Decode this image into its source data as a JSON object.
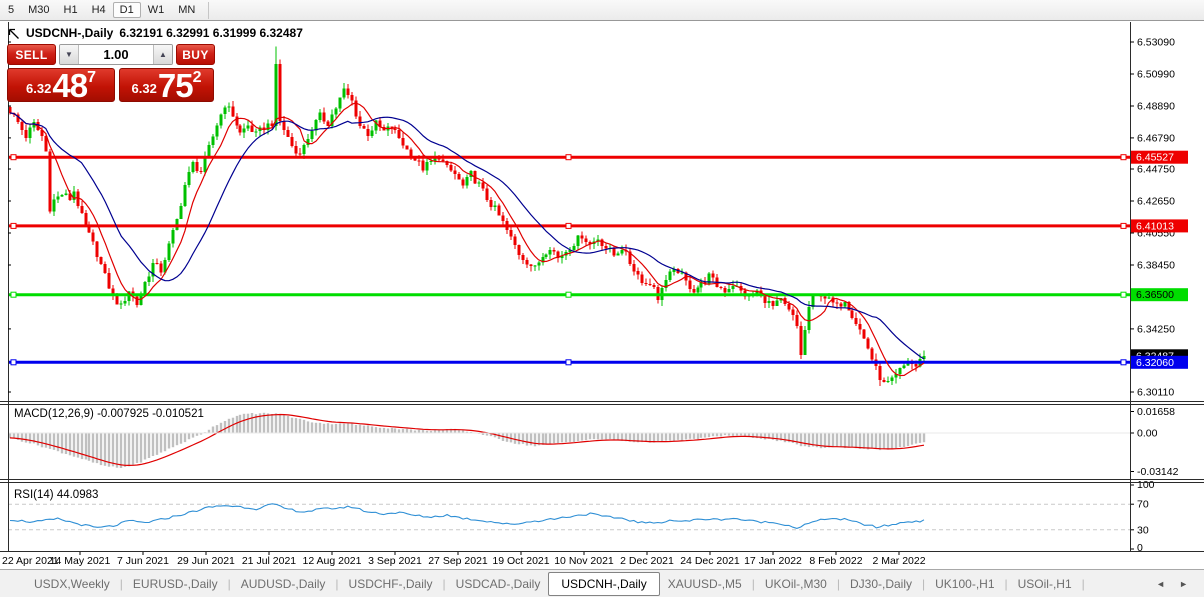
{
  "toolbar": {
    "items": [
      "5",
      "M30",
      "H1",
      "H4",
      "D1",
      "W1",
      "MN"
    ],
    "active": "D1"
  },
  "chart_header": {
    "symbol": "USDCNH-,Daily",
    "ohlc": "6.32191 6.32991 6.31999 6.32487"
  },
  "trade_panel": {
    "sell_label": "SELL",
    "buy_label": "BUY",
    "volume": "1.00",
    "sell_price_prefix": "6.32",
    "sell_price_big": "48",
    "sell_price_sup": "7",
    "buy_price_prefix": "6.32",
    "buy_price_big": "75",
    "buy_price_sup": "2"
  },
  "icons": {
    "volume_down": "▼",
    "volume_up": "▲",
    "tab_scroll_left": "◄",
    "tab_scroll_right": "►"
  },
  "tabs": {
    "items": [
      "USDX,Weekly",
      "EURUSD-,Daily",
      "AUDUSD-,Daily",
      "USDCHF-,Daily",
      "USDCAD-,Daily",
      "USDCNH-,Daily",
      "XAUUSD-,M5",
      "UKOil-,M30",
      "DJ30-,Daily",
      "UK100-,H1",
      "USOil-,H1"
    ],
    "active_index": 5
  },
  "chart_data": {
    "type": "candlestick",
    "title": "USDCNH-,Daily",
    "x_axis_dates": [
      "22 Apr 2021",
      "14 May 2021",
      "7 Jun 2021",
      "29 Jun 2021",
      "21 Jul 2021",
      "12 Aug 2021",
      "3 Sep 2021",
      "27 Sep 2021",
      "19 Oct 2021",
      "10 Nov 2021",
      "2 Dec 2021",
      "24 Dec 2021",
      "17 Jan 2022",
      "8 Feb 2022",
      "2 Mar 2022"
    ],
    "y_axis_ticks": [
      "6.53090",
      "6.50990",
      "6.48890",
      "6.46790",
      "6.44750",
      "6.42650",
      "6.40550",
      "6.38450",
      "6.34250",
      "6.30110"
    ],
    "y_range": [
      6.295,
      6.541
    ],
    "levels": [
      {
        "price": 6.45527,
        "label": "6.45527",
        "color": "#ee0000",
        "text_color": "#ffffff"
      },
      {
        "price": 6.41013,
        "label": "6.41013",
        "color": "#ee0000",
        "text_color": "#ffffff"
      },
      {
        "price": 6.365,
        "label": "6.36500",
        "color": "#00dd00",
        "text_color": "#000000"
      },
      {
        "price": 6.3206,
        "label": "6.32060",
        "color": "#0000ee",
        "text_color": "#ffffff"
      }
    ],
    "current_close_badge": {
      "price": 6.32487,
      "label": "6.32487",
      "color": "#000000",
      "text_color": "#ffffff"
    },
    "candle_count": 231,
    "spike_index": 67,
    "spike_high": 6.528,
    "price_anchors": [
      [
        0,
        6.486
      ],
      [
        2,
        6.478
      ],
      [
        4,
        6.469
      ],
      [
        6,
        6.477
      ],
      [
        8,
        6.469
      ],
      [
        9,
        6.459
      ],
      [
        10,
        6.422
      ],
      [
        11,
        6.427
      ],
      [
        13,
        6.431
      ],
      [
        15,
        6.428
      ],
      [
        16,
        6.433
      ],
      [
        18,
        6.416
      ],
      [
        20,
        6.404
      ],
      [
        22,
        6.392
      ],
      [
        24,
        6.377
      ],
      [
        26,
        6.364
      ],
      [
        28,
        6.357
      ],
      [
        30,
        6.368
      ],
      [
        32,
        6.359
      ],
      [
        34,
        6.373
      ],
      [
        36,
        6.385
      ],
      [
        38,
        6.381
      ],
      [
        40,
        6.397
      ],
      [
        42,
        6.414
      ],
      [
        44,
        6.437
      ],
      [
        46,
        6.451
      ],
      [
        48,
        6.446
      ],
      [
        50,
        6.461
      ],
      [
        52,
        6.477
      ],
      [
        54,
        6.49
      ],
      [
        56,
        6.483
      ],
      [
        58,
        6.471
      ],
      [
        60,
        6.476
      ],
      [
        62,
        6.47
      ],
      [
        64,
        6.475
      ],
      [
        66,
        6.478
      ],
      [
        67,
        6.514
      ],
      [
        68,
        6.479
      ],
      [
        70,
        6.468
      ],
      [
        72,
        6.458
      ],
      [
        74,
        6.462
      ],
      [
        76,
        6.474
      ],
      [
        78,
        6.482
      ],
      [
        80,
        6.478
      ],
      [
        82,
        6.488
      ],
      [
        84,
        6.499
      ],
      [
        86,
        6.492
      ],
      [
        88,
        6.476
      ],
      [
        90,
        6.471
      ],
      [
        92,
        6.477
      ],
      [
        94,
        6.472
      ],
      [
        96,
        6.475
      ],
      [
        98,
        6.468
      ],
      [
        100,
        6.46
      ],
      [
        102,
        6.454
      ],
      [
        104,
        6.448
      ],
      [
        106,
        6.452
      ],
      [
        108,
        6.456
      ],
      [
        110,
        6.448
      ],
      [
        112,
        6.444
      ],
      [
        114,
        6.436
      ],
      [
        116,
        6.444
      ],
      [
        118,
        6.437
      ],
      [
        120,
        6.428
      ],
      [
        122,
        6.421
      ],
      [
        124,
        6.412
      ],
      [
        126,
        6.402
      ],
      [
        128,
        6.392
      ],
      [
        130,
        6.387
      ],
      [
        132,
        6.382
      ],
      [
        134,
        6.391
      ],
      [
        136,
        6.397
      ],
      [
        138,
        6.389
      ],
      [
        140,
        6.394
      ],
      [
        142,
        6.399
      ],
      [
        144,
        6.404
      ],
      [
        146,
        6.398
      ],
      [
        148,
        6.402
      ],
      [
        150,
        6.396
      ],
      [
        152,
        6.391
      ],
      [
        154,
        6.396
      ],
      [
        156,
        6.386
      ],
      [
        158,
        6.378
      ],
      [
        160,
        6.372
      ],
      [
        162,
        6.372
      ],
      [
        163,
        6.36
      ],
      [
        164,
        6.371
      ],
      [
        166,
        6.378
      ],
      [
        168,
        6.381
      ],
      [
        170,
        6.373
      ],
      [
        172,
        6.368
      ],
      [
        174,
        6.372
      ],
      [
        176,
        6.377
      ],
      [
        178,
        6.371
      ],
      [
        180,
        6.368
      ],
      [
        182,
        6.372
      ],
      [
        184,
        6.367
      ],
      [
        186,
        6.363
      ],
      [
        188,
        6.367
      ],
      [
        190,
        6.362
      ],
      [
        192,
        6.357
      ],
      [
        194,
        6.361
      ],
      [
        196,
        6.354
      ],
      [
        197,
        6.35
      ],
      [
        198,
        6.344
      ],
      [
        199,
        6.326
      ],
      [
        200,
        6.341
      ],
      [
        201,
        6.357
      ],
      [
        202,
        6.362
      ],
      [
        204,
        6.366
      ],
      [
        206,
        6.361
      ],
      [
        208,
        6.357
      ],
      [
        210,
        6.362
      ],
      [
        212,
        6.352
      ],
      [
        214,
        6.342
      ],
      [
        216,
        6.33
      ],
      [
        218,
        6.316
      ],
      [
        220,
        6.306
      ],
      [
        222,
        6.308
      ],
      [
        224,
        6.315
      ],
      [
        226,
        6.321
      ],
      [
        228,
        6.318
      ],
      [
        230,
        6.32487
      ]
    ],
    "macd": {
      "label": "MACD(12,26,9) -0.007925 -0.010521",
      "axis_ticks": [
        "0.01658",
        "0.00",
        "-0.03142"
      ],
      "values_end": [
        -0.007925,
        -0.010521
      ],
      "anchors": [
        [
          0,
          -0.004
        ],
        [
          6,
          -0.009
        ],
        [
          12,
          -0.015
        ],
        [
          18,
          -0.021
        ],
        [
          24,
          -0.027
        ],
        [
          28,
          -0.0285
        ],
        [
          32,
          -0.025
        ],
        [
          36,
          -0.019
        ],
        [
          40,
          -0.013
        ],
        [
          44,
          -0.007
        ],
        [
          48,
          -0.001
        ],
        [
          52,
          0.007
        ],
        [
          56,
          0.013
        ],
        [
          60,
          0.0158
        ],
        [
          64,
          0.016
        ],
        [
          68,
          0.0155
        ],
        [
          72,
          0.012
        ],
        [
          76,
          0.009
        ],
        [
          80,
          0.0075
        ],
        [
          84,
          0.008
        ],
        [
          88,
          0.0065
        ],
        [
          92,
          0.005
        ],
        [
          96,
          0.004
        ],
        [
          100,
          0.003
        ],
        [
          104,
          0.002
        ],
        [
          108,
          0.0025
        ],
        [
          112,
          0.003
        ],
        [
          116,
          0.001
        ],
        [
          120,
          -0.002
        ],
        [
          124,
          -0.006
        ],
        [
          128,
          -0.009
        ],
        [
          132,
          -0.0105
        ],
        [
          136,
          -0.009
        ],
        [
          140,
          -0.0075
        ],
        [
          144,
          -0.006
        ],
        [
          148,
          -0.005
        ],
        [
          152,
          -0.0055
        ],
        [
          156,
          -0.007
        ],
        [
          160,
          -0.0075
        ],
        [
          164,
          -0.007
        ],
        [
          168,
          -0.006
        ],
        [
          172,
          -0.005
        ],
        [
          176,
          -0.0035
        ],
        [
          180,
          -0.002
        ],
        [
          184,
          -0.0025
        ],
        [
          188,
          -0.004
        ],
        [
          192,
          -0.0055
        ],
        [
          196,
          -0.008
        ],
        [
          200,
          -0.011
        ],
        [
          204,
          -0.012
        ],
        [
          208,
          -0.0115
        ],
        [
          212,
          -0.012
        ],
        [
          216,
          -0.013
        ],
        [
          220,
          -0.0135
        ],
        [
          224,
          -0.012
        ],
        [
          227,
          -0.0095
        ],
        [
          230,
          -0.0079
        ]
      ]
    },
    "rsi": {
      "label": "RSI(14) 44.0983",
      "axis_ticks": [
        "100",
        "70",
        "30",
        "0"
      ],
      "dashed_levels": [
        70,
        30
      ],
      "anchors": [
        [
          0,
          46
        ],
        [
          6,
          42
        ],
        [
          12,
          47
        ],
        [
          18,
          38
        ],
        [
          22,
          33
        ],
        [
          26,
          36
        ],
        [
          30,
          44
        ],
        [
          34,
          41
        ],
        [
          38,
          46
        ],
        [
          44,
          55
        ],
        [
          50,
          65
        ],
        [
          54,
          68
        ],
        [
          58,
          66
        ],
        [
          62,
          63
        ],
        [
          66,
          70
        ],
        [
          70,
          62
        ],
        [
          74,
          58
        ],
        [
          78,
          62
        ],
        [
          82,
          64
        ],
        [
          86,
          66
        ],
        [
          90,
          58
        ],
        [
          94,
          55
        ],
        [
          98,
          57
        ],
        [
          102,
          52
        ],
        [
          106,
          50
        ],
        [
          110,
          53
        ],
        [
          114,
          48
        ],
        [
          118,
          45
        ],
        [
          122,
          42
        ],
        [
          126,
          38
        ],
        [
          130,
          42
        ],
        [
          134,
          45
        ],
        [
          138,
          48
        ],
        [
          142,
          52
        ],
        [
          146,
          55
        ],
        [
          150,
          50
        ],
        [
          154,
          48
        ],
        [
          158,
          42
        ],
        [
          162,
          40
        ],
        [
          166,
          45
        ],
        [
          170,
          43
        ],
        [
          174,
          47
        ],
        [
          178,
          46
        ],
        [
          182,
          48
        ],
        [
          186,
          44
        ],
        [
          190,
          42
        ],
        [
          194,
          40
        ],
        [
          198,
          33
        ],
        [
          202,
          42
        ],
        [
          206,
          48
        ],
        [
          210,
          46
        ],
        [
          214,
          40
        ],
        [
          218,
          34
        ],
        [
          222,
          38
        ],
        [
          226,
          43
        ],
        [
          230,
          44.1
        ]
      ]
    },
    "colors": {
      "bull": "#00c000",
      "bear": "#ee0000",
      "ma_fast": "#e00000",
      "ma_slow": "#000090",
      "macd_hist": "#c0c0c0",
      "macd_signal": "#e00000",
      "rsi_line": "#2f8fd5",
      "axis_text": "#000000"
    }
  }
}
